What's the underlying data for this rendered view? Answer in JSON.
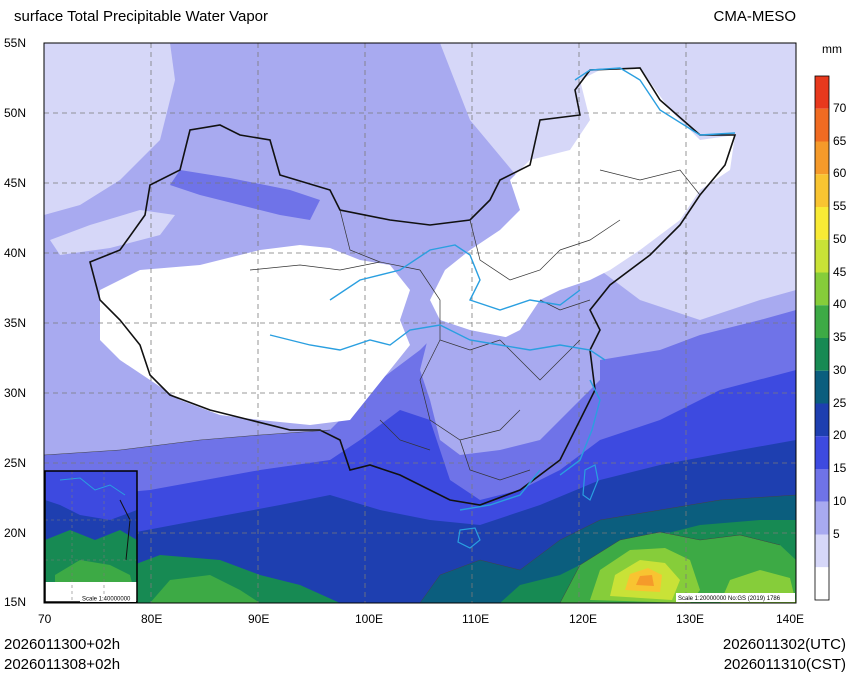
{
  "header": {
    "title": "surface Total Precipitable Water Vapor",
    "model": "CMA-MESO"
  },
  "axes": {
    "lat_labels": [
      "55N",
      "50N",
      "45N",
      "40N",
      "35N",
      "30N",
      "25N",
      "20N",
      "15N"
    ],
    "lon_labels": [
      "70",
      "80E",
      "90E",
      "100E",
      "110E",
      "120E",
      "130E",
      "140E"
    ]
  },
  "colorbar": {
    "unit": "mm",
    "levels": [
      "70",
      "65",
      "60",
      "55",
      "50",
      "45",
      "40",
      "35",
      "30",
      "25",
      "20",
      "15",
      "10",
      "5"
    ],
    "colors": [
      "#e8391d",
      "#f06b22",
      "#f59a2a",
      "#f8c431",
      "#f8ea35",
      "#c9e237",
      "#86cd3a",
      "#3daa45",
      "#178a53",
      "#0b5e7e",
      "#1e3fb0",
      "#3d4ae0",
      "#6f73e8",
      "#a8aaf0",
      "#d6d7f8",
      "#ffffff"
    ]
  },
  "inset": {
    "scale": "Scale 1:40000000"
  },
  "map_note": "Scale 1:20000000 No:GS (2019) 1786",
  "footer": {
    "left_line1": "2026011300+02h",
    "left_line2": "2026011308+02h",
    "right_line1": "2026011302(UTC)",
    "right_line2": "2026011310(CST)"
  }
}
